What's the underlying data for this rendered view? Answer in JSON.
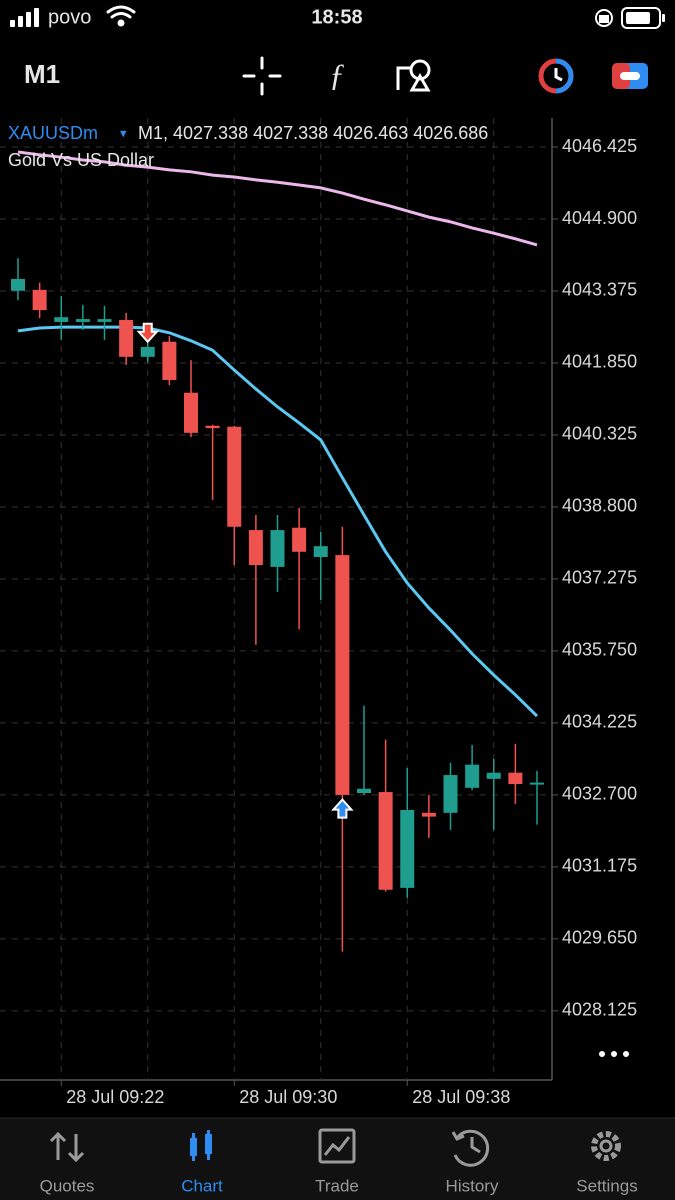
{
  "status_bar": {
    "carrier": "povo",
    "time": "18:58"
  },
  "toolbar": {
    "timeframe": "M1"
  },
  "chart_data": {
    "type": "candlestick",
    "symbol": "XAUUSDm",
    "symbol_menu": "▾",
    "ohlc_text": "M1, 4027.338 4027.338 4026.463 4026.686",
    "subtitle": "Gold Vs US Dollar",
    "categories": [
      null,
      null,
      "28 Jul 09:22",
      null,
      null,
      null,
      null,
      null,
      null,
      null,
      "28 Jul 09:30",
      null,
      null,
      null,
      null,
      null,
      null,
      null,
      "28 Jul 09:38",
      null,
      null,
      null,
      null,
      null,
      null
    ],
    "open": [
      4043.38,
      4043.4,
      4042.72,
      4042.72,
      4042.72,
      4042.76,
      4041.98,
      4042.3,
      4041.22,
      4040.52,
      4040.5,
      4038.31,
      4037.53,
      4038.36,
      4037.74,
      4037.78,
      4032.74,
      4032.76,
      4030.73,
      4032.32,
      4032.32,
      4032.85,
      4033.04,
      4033.17,
      4032.96
    ],
    "high": [
      4044.07,
      4043.55,
      4043.27,
      4043.08,
      4043.06,
      4042.91,
      4042.55,
      4042.42,
      4041.91,
      4040.54,
      4040.52,
      4038.63,
      4038.63,
      4038.78,
      4038.27,
      4038.38,
      4034.59,
      4033.87,
      4033.27,
      4032.7,
      4033.38,
      4033.76,
      4033.46,
      4033.78,
      4033.21
    ],
    "low": [
      4043.18,
      4042.8,
      4042.34,
      4042.55,
      4042.34,
      4041.81,
      4041.87,
      4041.38,
      4040.28,
      4038.95,
      4037.57,
      4035.88,
      4037.0,
      4036.21,
      4036.83,
      4029.38,
      4032.7,
      4030.65,
      4030.52,
      4031.79,
      4031.96,
      4032.8,
      4031.96,
      4032.51,
      4032.07
    ],
    "close": [
      4043.63,
      4042.97,
      4042.82,
      4042.78,
      4042.78,
      4041.98,
      4042.19,
      4041.49,
      4040.37,
      4040.47,
      4038.38,
      4037.57,
      4038.31,
      4037.85,
      4037.97,
      4032.7,
      4032.83,
      4030.69,
      4032.38,
      4032.24,
      4033.12,
      4033.34,
      4033.17,
      4032.93,
      4032.96
    ],
    "up_color": "#1f9e8f",
    "down_color": "#ef5350",
    "moving_averages": [
      {
        "color": "#ecb8ec",
        "values": [
          4046.32,
          4046.26,
          4046.21,
          4046.15,
          4046.11,
          4046.04,
          4046.0,
          4045.94,
          4045.9,
          4045.83,
          4045.79,
          4045.73,
          4045.68,
          4045.62,
          4045.56,
          4045.45,
          4045.32,
          4045.2,
          4045.07,
          4044.94,
          4044.84,
          4044.71,
          4044.6,
          4044.48,
          4044.35
        ]
      },
      {
        "color": "#5cc8f2",
        "values": [
          4042.53,
          4042.59,
          4042.61,
          4042.61,
          4042.61,
          4042.61,
          4042.59,
          4042.49,
          4042.32,
          4042.12,
          4041.7,
          4041.3,
          4040.92,
          4040.58,
          4040.22,
          4039.42,
          4038.63,
          4037.85,
          4037.19,
          4036.66,
          4036.19,
          4035.69,
          4035.24,
          4034.82,
          4034.37
        ]
      }
    ],
    "trade": {
      "values": [
        null,
        null,
        null,
        null,
        null,
        null,
        4042.3,
        null,
        null,
        null,
        null,
        null,
        null,
        null,
        null,
        4032.6,
        null,
        null,
        null,
        null,
        null,
        null,
        null,
        null,
        null
      ],
      "line_color": "#ef5350",
      "sell_color": "#ef4a3c",
      "buy_color": "#2f8cf0"
    },
    "ylim": [
      4026.66,
      4047.04
    ],
    "yticks": [
      4046.425,
      {
        "value": 4044.9,
        "label": "4044.900"
      },
      4043.375,
      {
        "value": 4041.85,
        "label": "4041.850"
      },
      4040.325,
      {
        "value": 4038.8,
        "label": "4038.800"
      },
      4037.275,
      {
        "value": 4035.75,
        "label": "4035.750"
      },
      4034.225,
      {
        "value": 4032.7,
        "label": "4032.700"
      },
      4031.175,
      {
        "value": 4029.65,
        "label": "4029.650"
      },
      4028.125
    ],
    "grid": true
  },
  "tabs": [
    {
      "label": "Quotes",
      "active": false
    },
    {
      "label": "Chart",
      "active": true
    },
    {
      "label": "Trade",
      "active": false
    },
    {
      "label": "History",
      "active": false
    },
    {
      "label": "Settings",
      "active": false
    }
  ]
}
